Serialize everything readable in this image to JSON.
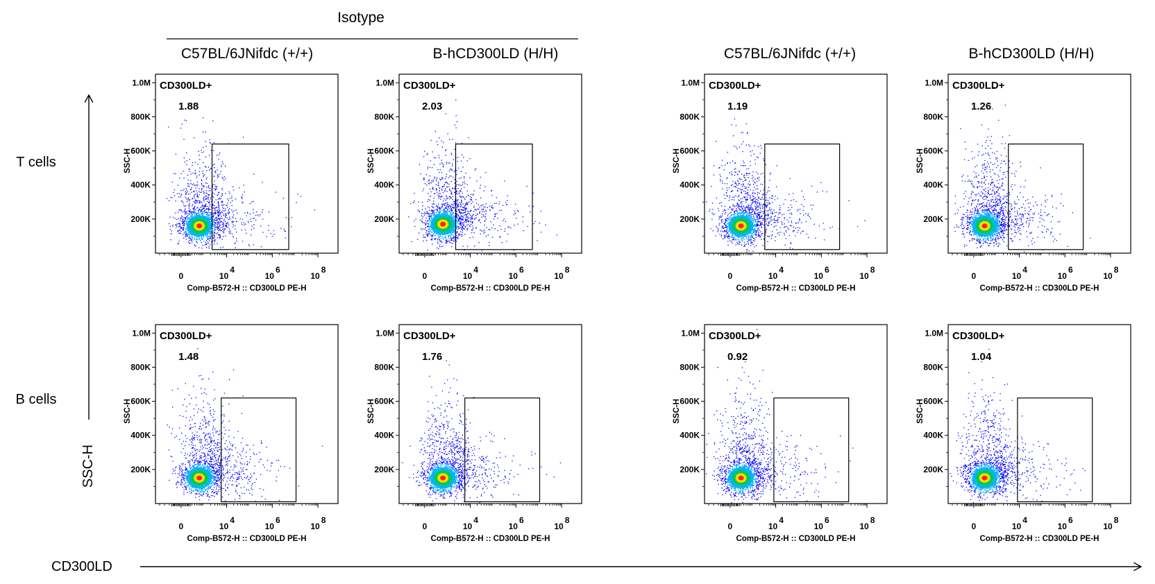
{
  "figure": {
    "group_header": "Isotype",
    "column_headers": [
      "C57BL/6JNifdc (+/+)",
      "B-hCD300LD (H/H)",
      "C57BL/6JNifdc (+/+)",
      "B-hCD300LD (H/H)"
    ],
    "row_labels": [
      "T cells",
      "B cells"
    ],
    "y_axis_title": "SSC-H",
    "x_axis_title": "CD300LD"
  },
  "colors": {
    "points_low": "#0000ff",
    "points_mid": "#00cc44",
    "points_high": "#ffdd00",
    "points_peak": "#ff2200",
    "frame": "#000000"
  },
  "chart_data": [
    {
      "type": "scatter",
      "row": "T cells",
      "column": "C57BL/6JNifdc (+/+)",
      "group": "Isotype",
      "gate": "CD300LD+",
      "gate_value": "1.88",
      "xlabel": "Comp-B572-H :: CD300LD PE-H",
      "ylabel": "SSC-H",
      "xticks": [
        "0",
        "10^4",
        "10^6",
        "10^8"
      ],
      "yticks": [
        "200K",
        "400K",
        "600K",
        "800K",
        "1.0M"
      ],
      "ylim": [
        0,
        1050000
      ],
      "population": {
        "center_x": 0.1,
        "center_y": 160000,
        "tail": "upward",
        "events": 1800
      }
    },
    {
      "type": "scatter",
      "row": "T cells",
      "column": "B-hCD300LD (H/H)",
      "group": "Isotype",
      "gate": "CD300LD+",
      "gate_value": "2.03",
      "xlabel": "Comp-B572-H :: CD300LD PE-H",
      "ylabel": "SSC-H",
      "xticks": [
        "0",
        "10^4",
        "10^6",
        "10^8"
      ],
      "yticks": [
        "200K",
        "400K",
        "600K",
        "800K",
        "1.0M"
      ],
      "ylim": [
        0,
        1050000
      ],
      "population": {
        "center_x": 0.1,
        "center_y": 170000,
        "tail": "upward",
        "events": 1800
      }
    },
    {
      "type": "scatter",
      "row": "T cells",
      "column": "C57BL/6JNifdc (+/+)",
      "group": "",
      "gate": "CD300LD+",
      "gate_value": "1.19",
      "xlabel": "Comp-B572-H :: CD300LD PE-H",
      "ylabel": "SSC-H",
      "xticks": [
        "0",
        "10^4",
        "10^6",
        "10^8"
      ],
      "yticks": [
        "200K",
        "400K",
        "600K",
        "800K",
        "1.0M"
      ],
      "ylim": [
        0,
        1050000
      ],
      "population": {
        "center_x": 0.0,
        "center_y": 160000,
        "tail": "upward",
        "events": 1800
      }
    },
    {
      "type": "scatter",
      "row": "T cells",
      "column": "B-hCD300LD (H/H)",
      "group": "",
      "gate": "CD300LD+",
      "gate_value": "1.26",
      "xlabel": "Comp-B572-H :: CD300LD PE-H",
      "ylabel": "SSC-H",
      "xticks": [
        "0",
        "10^4",
        "10^6",
        "10^8"
      ],
      "yticks": [
        "200K",
        "400K",
        "600K",
        "800K",
        "1.0M"
      ],
      "ylim": [
        0,
        1050000
      ],
      "population": {
        "center_x": 0.0,
        "center_y": 160000,
        "tail": "upward",
        "events": 1800
      }
    },
    {
      "type": "scatter",
      "row": "B cells",
      "column": "C57BL/6JNifdc (+/+)",
      "group": "Isotype",
      "gate": "CD300LD+",
      "gate_value": "1.48",
      "xlabel": "Comp-B572-H :: CD300LD PE-H",
      "ylabel": "SSC-H",
      "xticks": [
        "0",
        "10^4",
        "10^6",
        "10^8"
      ],
      "yticks": [
        "200K",
        "400K",
        "600K",
        "800K",
        "1.0M"
      ],
      "ylim": [
        0,
        1050000
      ],
      "population": {
        "center_x": 0.1,
        "center_y": 150000,
        "tail": "upward",
        "events": 1800
      }
    },
    {
      "type": "scatter",
      "row": "B cells",
      "column": "B-hCD300LD (H/H)",
      "group": "Isotype",
      "gate": "CD300LD+",
      "gate_value": "1.76",
      "xlabel": "Comp-B572-H :: CD300LD PE-H",
      "ylabel": "SSC-H",
      "xticks": [
        "0",
        "10^4",
        "10^6",
        "10^8"
      ],
      "yticks": [
        "200K",
        "400K",
        "600K",
        "800K",
        "1.0M"
      ],
      "ylim": [
        0,
        1050000
      ],
      "population": {
        "center_x": 0.1,
        "center_y": 150000,
        "tail": "upward",
        "events": 1800
      }
    },
    {
      "type": "scatter",
      "row": "B cells",
      "column": "C57BL/6JNifdc (+/+)",
      "group": "",
      "gate": "CD300LD+",
      "gate_value": "0.92",
      "xlabel": "Comp-B572-H :: CD300LD PE-H",
      "ylabel": "SSC-H",
      "xticks": [
        "0",
        "10^4",
        "10^6",
        "10^8"
      ],
      "yticks": [
        "200K",
        "400K",
        "600K",
        "800K",
        "1.0M"
      ],
      "ylim": [
        0,
        1050000
      ],
      "population": {
        "center_x": 0.0,
        "center_y": 150000,
        "tail": "upward",
        "events": 1800
      }
    },
    {
      "type": "scatter",
      "row": "B cells",
      "column": "B-hCD300LD (H/H)",
      "group": "",
      "gate": "CD300LD+",
      "gate_value": "1.04",
      "xlabel": "Comp-B572-H :: CD300LD PE-H",
      "ylabel": "SSC-H",
      "xticks": [
        "0",
        "10^4",
        "10^6",
        "10^8"
      ],
      "yticks": [
        "200K",
        "400K",
        "600K",
        "800K",
        "1.0M"
      ],
      "ylim": [
        0,
        1050000
      ],
      "population": {
        "center_x": 0.0,
        "center_y": 150000,
        "tail": "upward",
        "events": 1800
      }
    }
  ]
}
